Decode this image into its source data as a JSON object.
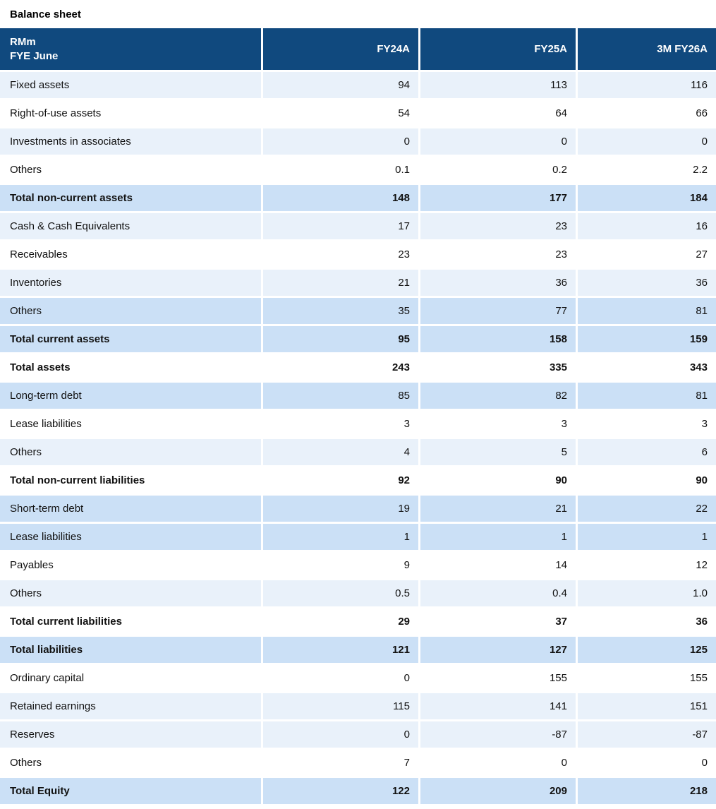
{
  "title": "Balance sheet",
  "table": {
    "header": {
      "label_line1": "RMm",
      "label_line2": "FYE June",
      "columns": [
        "FY24A",
        "FY25A",
        "3M FY26A"
      ]
    },
    "rows": [
      {
        "label": "Fixed assets",
        "values": [
          "94",
          "113",
          "116"
        ],
        "style": "pale",
        "bold": false
      },
      {
        "label": "Right-of-use assets",
        "values": [
          "54",
          "64",
          "66"
        ],
        "style": "white",
        "bold": false
      },
      {
        "label": "Investments in associates",
        "values": [
          "0",
          "0",
          "0"
        ],
        "style": "pale",
        "bold": false
      },
      {
        "label": "Others",
        "values": [
          "0.1",
          "0.2",
          "2.2"
        ],
        "style": "white",
        "bold": false
      },
      {
        "label": "Total non-current assets",
        "values": [
          "148",
          "177",
          "184"
        ],
        "style": "medium",
        "bold": true
      },
      {
        "label": "Cash & Cash Equivalents",
        "values": [
          "17",
          "23",
          "16"
        ],
        "style": "pale",
        "bold": false
      },
      {
        "label": "Receivables",
        "values": [
          "23",
          "23",
          "27"
        ],
        "style": "white",
        "bold": false
      },
      {
        "label": "Inventories",
        "values": [
          "21",
          "36",
          "36"
        ],
        "style": "pale",
        "bold": false
      },
      {
        "label": "Others",
        "values": [
          "35",
          "77",
          "81"
        ],
        "style": "medium",
        "bold": false
      },
      {
        "label": "Total current assets",
        "values": [
          "95",
          "158",
          "159"
        ],
        "style": "medium",
        "bold": true
      },
      {
        "label": "Total assets",
        "values": [
          "243",
          "335",
          "343"
        ],
        "style": "white",
        "bold": true
      },
      {
        "label": "Long-term debt",
        "values": [
          "85",
          "82",
          "81"
        ],
        "style": "medium",
        "bold": false
      },
      {
        "label": "Lease liabilities",
        "values": [
          "3",
          "3",
          "3"
        ],
        "style": "white",
        "bold": false
      },
      {
        "label": "Others",
        "values": [
          "4",
          "5",
          "6"
        ],
        "style": "pale",
        "bold": false
      },
      {
        "label": "Total non-current liabilities",
        "values": [
          "92",
          "90",
          "90"
        ],
        "style": "white",
        "bold": true
      },
      {
        "label": "Short-term debt",
        "values": [
          "19",
          "21",
          "22"
        ],
        "style": "medium",
        "bold": false
      },
      {
        "label": "Lease liabilities",
        "values": [
          "1",
          "1",
          "1"
        ],
        "style": "medium",
        "bold": false
      },
      {
        "label": "Payables",
        "values": [
          "9",
          "14",
          "12"
        ],
        "style": "white",
        "bold": false
      },
      {
        "label": "Others",
        "values": [
          "0.5",
          "0.4",
          "1.0"
        ],
        "style": "pale",
        "bold": false
      },
      {
        "label": "Total current liabilities",
        "values": [
          "29",
          "37",
          "36"
        ],
        "style": "white",
        "bold": true
      },
      {
        "label": "Total liabilities",
        "values": [
          "121",
          "127",
          "125"
        ],
        "style": "medium",
        "bold": true
      },
      {
        "label": "Ordinary capital",
        "values": [
          "0",
          "155",
          "155"
        ],
        "style": "white",
        "bold": false
      },
      {
        "label": "Retained earnings",
        "values": [
          "115",
          "141",
          "151"
        ],
        "style": "pale",
        "bold": false
      },
      {
        "label": "Reserves",
        "values": [
          "0",
          "-87",
          "-87"
        ],
        "style": "pale",
        "bold": false
      },
      {
        "label": "Others",
        "values": [
          "7",
          "0",
          "0"
        ],
        "style": "white",
        "bold": false
      },
      {
        "label": "Total Equity",
        "values": [
          "122",
          "209",
          "218"
        ],
        "style": "medium",
        "bold": true
      }
    ]
  },
  "colors": {
    "header_bg": "#10497E",
    "header_text": "#FFFFFF",
    "row_pale": "#E9F1FA",
    "row_medium": "#CBE0F6",
    "row_white": "#FFFFFF",
    "text": "#111111"
  },
  "chart_data": {
    "type": "table",
    "title": "Balance sheet",
    "unit": "RMm",
    "fiscal_note": "FYE June",
    "columns": [
      "FY24A",
      "FY25A",
      "3M FY26A"
    ],
    "rows": [
      {
        "label": "Fixed assets",
        "values": [
          94,
          113,
          116
        ],
        "is_total": false
      },
      {
        "label": "Right-of-use assets",
        "values": [
          54,
          64,
          66
        ],
        "is_total": false
      },
      {
        "label": "Investments in associates",
        "values": [
          0,
          0,
          0
        ],
        "is_total": false
      },
      {
        "label": "Others",
        "values": [
          0.1,
          0.2,
          2.2
        ],
        "is_total": false
      },
      {
        "label": "Total non-current assets",
        "values": [
          148,
          177,
          184
        ],
        "is_total": true
      },
      {
        "label": "Cash & Cash Equivalents",
        "values": [
          17,
          23,
          16
        ],
        "is_total": false
      },
      {
        "label": "Receivables",
        "values": [
          23,
          23,
          27
        ],
        "is_total": false
      },
      {
        "label": "Inventories",
        "values": [
          21,
          36,
          36
        ],
        "is_total": false
      },
      {
        "label": "Others",
        "values": [
          35,
          77,
          81
        ],
        "is_total": false
      },
      {
        "label": "Total current assets",
        "values": [
          95,
          158,
          159
        ],
        "is_total": true
      },
      {
        "label": "Total assets",
        "values": [
          243,
          335,
          343
        ],
        "is_total": true
      },
      {
        "label": "Long-term debt",
        "values": [
          85,
          82,
          81
        ],
        "is_total": false
      },
      {
        "label": "Lease liabilities",
        "values": [
          3,
          3,
          3
        ],
        "is_total": false
      },
      {
        "label": "Others",
        "values": [
          4,
          5,
          6
        ],
        "is_total": false
      },
      {
        "label": "Total non-current liabilities",
        "values": [
          92,
          90,
          90
        ],
        "is_total": true
      },
      {
        "label": "Short-term debt",
        "values": [
          19,
          21,
          22
        ],
        "is_total": false
      },
      {
        "label": "Lease liabilities",
        "values": [
          1,
          1,
          1
        ],
        "is_total": false
      },
      {
        "label": "Payables",
        "values": [
          9,
          14,
          12
        ],
        "is_total": false
      },
      {
        "label": "Others",
        "values": [
          0.5,
          0.4,
          1.0
        ],
        "is_total": false
      },
      {
        "label": "Total current liabilities",
        "values": [
          29,
          37,
          36
        ],
        "is_total": true
      },
      {
        "label": "Total liabilities",
        "values": [
          121,
          127,
          125
        ],
        "is_total": true
      },
      {
        "label": "Ordinary capital",
        "values": [
          0,
          155,
          155
        ],
        "is_total": false
      },
      {
        "label": "Retained earnings",
        "values": [
          115,
          141,
          151
        ],
        "is_total": false
      },
      {
        "label": "Reserves",
        "values": [
          0,
          -87,
          -87
        ],
        "is_total": false
      },
      {
        "label": "Others",
        "values": [
          7,
          0,
          0
        ],
        "is_total": false
      },
      {
        "label": "Total Equity",
        "values": [
          122,
          209,
          218
        ],
        "is_total": true
      }
    ]
  }
}
